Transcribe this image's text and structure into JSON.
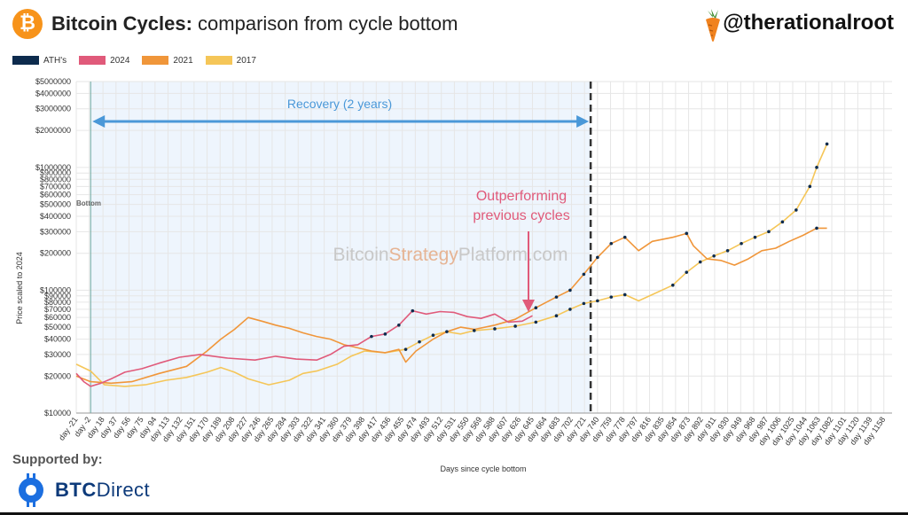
{
  "header": {
    "title_bold": "Bitcoin Cycles:",
    "title_rest": " comparison from cycle bottom",
    "handle": "@therationalroot",
    "logo_glyph": "₿"
  },
  "legend": [
    {
      "label": "ATH's",
      "color": "#0d2b4d"
    },
    {
      "label": "2024",
      "color": "#e05a7a"
    },
    {
      "label": "2021",
      "color": "#f0963a"
    },
    {
      "label": "2017",
      "color": "#f5c658"
    }
  ],
  "annotations": {
    "recovery": "Recovery (2 years)",
    "outperforming_line1": "Outperforming",
    "outperforming_line2": "previous cycles",
    "bottom": "Bottom",
    "watermark_a": "Bitcoin",
    "watermark_b": "Strategy",
    "watermark_c": "Platform.com"
  },
  "footer": {
    "supported_by": "Supported by:",
    "brand_bold": "BTC",
    "brand_rest": "Direct"
  },
  "chart_data": {
    "type": "line",
    "xlabel": "Days since cycle bottom",
    "ylabel": "Price scaled to 2024",
    "yscale": "log",
    "ylim": [
      10000,
      5000000
    ],
    "xlim": [
      -21,
      1170
    ],
    "grid": true,
    "y_ticks": [
      {
        "v": 10000,
        "label": "$10000"
      },
      {
        "v": 20000,
        "label": "$20000"
      },
      {
        "v": 30000,
        "label": "$30000"
      },
      {
        "v": 40000,
        "label": "$40000"
      },
      {
        "v": 50000,
        "label": "$50000"
      },
      {
        "v": 60000,
        "label": "$60000"
      },
      {
        "v": 70000,
        "label": "$70000"
      },
      {
        "v": 80000,
        "label": "$80000"
      },
      {
        "v": 90000,
        "label": "$90000"
      },
      {
        "v": 100000,
        "label": "$100000"
      },
      {
        "v": 200000,
        "label": "$200000"
      },
      {
        "v": 300000,
        "label": "$300000"
      },
      {
        "v": 400000,
        "label": "$400000"
      },
      {
        "v": 500000,
        "label": "$500000"
      },
      {
        "v": 600000,
        "label": "$600000"
      },
      {
        "v": 700000,
        "label": "$700000"
      },
      {
        "v": 800000,
        "label": "$800000"
      },
      {
        "v": 900000,
        "label": "$900000"
      },
      {
        "v": 1000000,
        "label": "$1000000"
      },
      {
        "v": 2000000,
        "label": "$2000000"
      },
      {
        "v": 3000000,
        "label": "$3000000"
      },
      {
        "v": 4000000,
        "label": "$4000000"
      },
      {
        "v": 5000000,
        "label": "$5000000"
      }
    ],
    "x_ticks": [
      -21,
      -2,
      18,
      37,
      56,
      75,
      94,
      113,
      132,
      151,
      170,
      189,
      208,
      227,
      246,
      265,
      284,
      303,
      322,
      341,
      360,
      379,
      398,
      417,
      436,
      455,
      474,
      493,
      512,
      531,
      550,
      569,
      588,
      607,
      626,
      645,
      664,
      683,
      702,
      721,
      740,
      759,
      778,
      797,
      816,
      835,
      854,
      873,
      892,
      911,
      930,
      949,
      968,
      987,
      1006,
      1025,
      1044,
      1063,
      1082,
      1101,
      1120,
      1139,
      1158
    ],
    "recovery_range": [
      0,
      730
    ],
    "bottom_day": 0,
    "series": [
      {
        "name": "2024",
        "points": [
          [
            -21,
            21000
          ],
          [
            -10,
            18000
          ],
          [
            0,
            16500
          ],
          [
            15,
            17500
          ],
          [
            30,
            19000
          ],
          [
            50,
            21500
          ],
          [
            75,
            23000
          ],
          [
            100,
            25500
          ],
          [
            130,
            28500
          ],
          [
            160,
            30000
          ],
          [
            200,
            28000
          ],
          [
            240,
            27000
          ],
          [
            270,
            29000
          ],
          [
            300,
            27500
          ],
          [
            330,
            27000
          ],
          [
            350,
            30000
          ],
          [
            370,
            35000
          ],
          [
            390,
            36000
          ],
          [
            410,
            42000
          ],
          [
            430,
            44000
          ],
          [
            450,
            52000
          ],
          [
            470,
            68000
          ],
          [
            490,
            64000
          ],
          [
            510,
            67000
          ],
          [
            530,
            66000
          ],
          [
            550,
            61000
          ],
          [
            570,
            59000
          ],
          [
            590,
            64000
          ],
          [
            610,
            55000
          ],
          [
            630,
            56000
          ],
          [
            645,
            62000
          ]
        ]
      },
      {
        "name": "2021",
        "points": [
          [
            -21,
            20000
          ],
          [
            0,
            18000
          ],
          [
            30,
            17500
          ],
          [
            60,
            18000
          ],
          [
            100,
            21000
          ],
          [
            140,
            24000
          ],
          [
            170,
            32000
          ],
          [
            190,
            40000
          ],
          [
            210,
            48000
          ],
          [
            230,
            60000
          ],
          [
            250,
            56000
          ],
          [
            270,
            52000
          ],
          [
            290,
            49000
          ],
          [
            310,
            45000
          ],
          [
            330,
            42000
          ],
          [
            350,
            40000
          ],
          [
            370,
            36000
          ],
          [
            390,
            34000
          ],
          [
            410,
            32000
          ],
          [
            430,
            31000
          ],
          [
            450,
            33000
          ],
          [
            460,
            26000
          ],
          [
            475,
            32000
          ],
          [
            500,
            40000
          ],
          [
            520,
            46000
          ],
          [
            540,
            50000
          ],
          [
            560,
            48000
          ],
          [
            590,
            52000
          ],
          [
            620,
            58000
          ],
          [
            650,
            72000
          ],
          [
            680,
            88000
          ],
          [
            700,
            100000
          ],
          [
            720,
            135000
          ],
          [
            740,
            185000
          ],
          [
            760,
            240000
          ],
          [
            780,
            270000
          ],
          [
            800,
            210000
          ],
          [
            820,
            250000
          ],
          [
            850,
            270000
          ],
          [
            870,
            290000
          ],
          [
            880,
            230000
          ],
          [
            900,
            180000
          ],
          [
            920,
            175000
          ],
          [
            940,
            160000
          ],
          [
            960,
            180000
          ],
          [
            980,
            210000
          ],
          [
            1000,
            220000
          ],
          [
            1020,
            250000
          ],
          [
            1040,
            280000
          ],
          [
            1060,
            320000
          ],
          [
            1075,
            320000
          ]
        ]
      },
      {
        "name": "2017",
        "points": [
          [
            -21,
            25000
          ],
          [
            0,
            22000
          ],
          [
            20,
            17000
          ],
          [
            50,
            16500
          ],
          [
            80,
            17000
          ],
          [
            110,
            18500
          ],
          [
            140,
            19500
          ],
          [
            170,
            21500
          ],
          [
            190,
            23500
          ],
          [
            210,
            21500
          ],
          [
            230,
            19000
          ],
          [
            260,
            17000
          ],
          [
            290,
            18500
          ],
          [
            310,
            21000
          ],
          [
            330,
            22000
          ],
          [
            360,
            25000
          ],
          [
            380,
            29000
          ],
          [
            400,
            32000
          ],
          [
            430,
            31000
          ],
          [
            460,
            33000
          ],
          [
            480,
            38000
          ],
          [
            500,
            43000
          ],
          [
            520,
            46000
          ],
          [
            540,
            44000
          ],
          [
            560,
            47000
          ],
          [
            590,
            48500
          ],
          [
            620,
            51000
          ],
          [
            650,
            55000
          ],
          [
            680,
            62000
          ],
          [
            700,
            70000
          ],
          [
            720,
            78000
          ],
          [
            740,
            82000
          ],
          [
            760,
            88000
          ],
          [
            780,
            92000
          ],
          [
            800,
            82000
          ],
          [
            820,
            92000
          ],
          [
            850,
            110000
          ],
          [
            870,
            140000
          ],
          [
            890,
            170000
          ],
          [
            910,
            190000
          ],
          [
            930,
            210000
          ],
          [
            950,
            240000
          ],
          [
            970,
            270000
          ],
          [
            990,
            300000
          ],
          [
            1010,
            360000
          ],
          [
            1030,
            450000
          ],
          [
            1050,
            700000
          ],
          [
            1060,
            1000000
          ],
          [
            1075,
            1550000
          ]
        ]
      }
    ]
  }
}
